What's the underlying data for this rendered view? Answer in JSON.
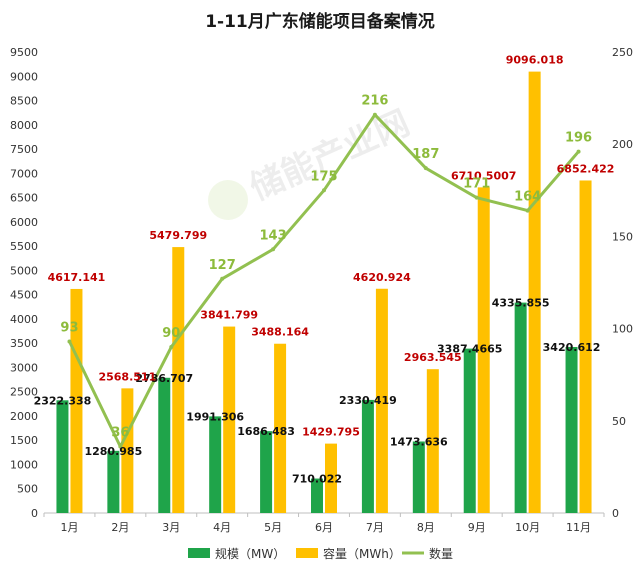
{
  "title": "1-11月广东储能项目备案情况",
  "watermark": "储能产业网",
  "legend": {
    "scale": "规模（MW）",
    "capacity": "容量（MWh）",
    "count": "数量"
  },
  "colors": {
    "scale": "#1fa44a",
    "capacity": "#ffc000",
    "count": "#92c050"
  },
  "chart_data": {
    "type": "bar",
    "title": "1-11月广东储能项目备案情况",
    "categories": [
      "1月",
      "2月",
      "3月",
      "4月",
      "5月",
      "6月",
      "7月",
      "8月",
      "9月",
      "10月",
      "11月"
    ],
    "series": [
      {
        "name": "规模（MW）",
        "type": "bar",
        "axis": "left",
        "values": [
          2322.338,
          1280.985,
          2786.707,
          1991.306,
          1686.483,
          710.022,
          2330.419,
          1473.636,
          3387.4665,
          4335.855,
          3420.612
        ],
        "labels": [
          "2322.338",
          "1280.985",
          "2786.707",
          "1991.306",
          "1686.483",
          "710.022",
          "2330.419",
          "1473.636",
          "3387.4665",
          "4335.855",
          "3420.612"
        ]
      },
      {
        "name": "容量（MWh）",
        "type": "bar",
        "axis": "left",
        "values": [
          4617.141,
          2568.511,
          5479.799,
          3841.799,
          3488.164,
          1429.795,
          4620.924,
          2963.545,
          6710.5007,
          9096.018,
          6852.422
        ],
        "labels": [
          "4617.141",
          "2568.511",
          "5479.799",
          "3841.799",
          "3488.164",
          "1429.795",
          "4620.924",
          "2963.545",
          "6710.5007",
          "9096.018",
          "6852.422"
        ]
      },
      {
        "name": "数量",
        "type": "line",
        "axis": "right",
        "values": [
          93,
          36,
          90,
          127,
          143,
          175,
          216,
          187,
          171,
          164,
          196
        ],
        "labels": [
          "93",
          "36",
          "90",
          "127",
          "143",
          "175",
          "216",
          "187",
          "171",
          "164",
          "196"
        ]
      }
    ],
    "y_left": {
      "min": 0,
      "max": 9500,
      "step": 500,
      "ticks": [
        "0",
        "500",
        "1000",
        "1500",
        "2000",
        "2500",
        "3000",
        "3500",
        "4000",
        "4500",
        "5000",
        "5500",
        "6000",
        "6500",
        "7000",
        "7500",
        "8000",
        "8500",
        "9000",
        "9500"
      ]
    },
    "y_right": {
      "min": 0,
      "max": 250,
      "step": 50,
      "ticks": [
        "0",
        "50",
        "100",
        "150",
        "200",
        "250"
      ]
    },
    "grid": false,
    "legend_position": "bottom"
  }
}
